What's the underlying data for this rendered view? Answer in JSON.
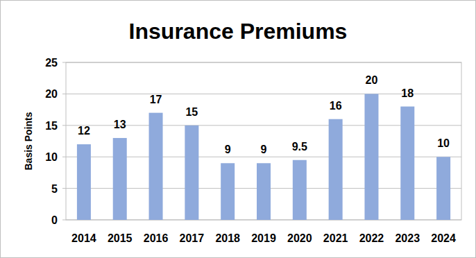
{
  "chart_data": {
    "type": "bar",
    "title": "Insurance Premiums",
    "y_label": "Basis Points",
    "categories": [
      "2014",
      "2015",
      "2016",
      "2017",
      "2018",
      "2019",
      "2020",
      "2021",
      "2022",
      "2023",
      "2024"
    ],
    "values": [
      12,
      13,
      17,
      15,
      9,
      9,
      9.5,
      16,
      20,
      18,
      10
    ],
    "color": "#8faadc",
    "ylim": [
      0,
      25
    ],
    "yticks": [
      0,
      5,
      10,
      15,
      20,
      25
    ],
    "grid": true,
    "data_labels": true
  }
}
